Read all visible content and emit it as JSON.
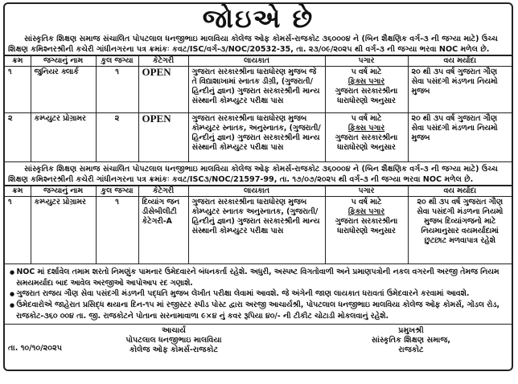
{
  "title": "જોઇએ છે",
  "sections": [
    {
      "intro": "સાંસ્કૃતિક શિક્ષણ સમાજ સંચાલિત પોપટલાલ ધનજીભાઇ માલવિયા કોલેજ ઓફ કોમર્સ-રાજકોટ ૩૬૦૦૦૪ ને (બિન શૈક્ષણિક વર્ગ-૩ ની જગ્યા માટે) ઉચ્ચ શિક્ષણ કમિશ્નરશ્રીની કચેરી ગાંધીનગરના પત્ર ક્રમાંકઃ કવટ/ISC/વર્ગ-૩/NOC/20532-35, તા. ૨૩/૦૯/૨૦૨૫ થી વર્ગ-૩ ની જગ્યા ભરવા NOC મળેલ છે.",
      "rows": [
        {
          "no": "૧",
          "post": "જુનિયર ક્લાર્ક",
          "count": "૧",
          "category": "OPEN",
          "qualification": "ગુજરાત સરકારશ્રીના ધારાધોરણ મુજબ જે તે વિદ્યાશાખામાં સ્નાતક ડીગ્રી, (ગુજરાતી/હિન્દીનું જ્ઞાન) ગુજરાત સરકારશ્રીની માન્ય સંસ્થાની કોમ્પ્યુટર પરીક્ષા પાસ",
          "pay1": "૫ વર્ષ માટે",
          "pay2": "ફિક્સ પગાર",
          "pay3": "ગુજરાત સરકારશ્રીના ધારાધોરણો અનુસાર",
          "age": "૨૦ થી ૩૫ વર્ષ ગુજરાત ગૌણ સેવા પસંદગી મંડળના નિયમો મુજબ"
        },
        {
          "no": "૨",
          "post": "કમ્પ્યુટર પ્રોગ્રામર",
          "count": "૨",
          "category": "OPEN",
          "qualification": "ગુજરાત સરકારશ્રીના ધારાધોરણ મુજબ કોમ્પ્યુટર સ્નાતક, અનુસ્નાતક, (ગુજરાતી/હિન્દીનું જ્ઞાન) ગુજરાત સરકારશ્રીની માન્ય સંસ્થાની કોમ્પ્યુટર પરીક્ષા પાસ",
          "pay1": "૫ વર્ષ માટે",
          "pay2": "ફિક્સ પગાર",
          "pay3": "ગુજરાત સરકારશ્રીના ધારાધોરણો અનુસાર",
          "age": "૨૦ થી ૩૫ વર્ષ ગુજરાત ગૌણ સેવા પસંદગી મંડળના નિયમો મુજબ"
        }
      ]
    },
    {
      "intro": "સાંસ્કૃતિક શિક્ષણ સમાજ સંચાલિત પોપટલાલ ધનજીભાઇ માલવિયા કોલેજ ઓફ કોમર્સ-રાજકોટ ૩૬૦૦૦૪ ને (બિન શૈક્ષણિક વર્ગ-૩ ની જગ્યા માટે) ઉચ્ચ શિક્ષણ કમિશ્નરશ્રીની કચેરી ગાંધીનગરના પત્ર ક્રમાંકઃ કવટ/ISC૩/NOC/21597-99, તા. ૧૭/૦૭/૨૦૨૫ થી વર્ગ-૩ ની જગ્યા ભરવા NOC મળેલ છે.",
      "rows": [
        {
          "no": "૧",
          "post": "કમ્પ્યુટર પ્રોગ્રામર",
          "count": "૧",
          "category": "દિવ્યાંગ જન ડીસેબીલીટી કેટેગરી-A",
          "qualification": "ગુજરાત સરકારશ્રીના ધારાધોરણ મુજબ કોમ્પ્યુટર સ્નાતક અનુસ્નાતક, (ગુજરાતી/હિન્દીનું જ્ઞાન) ગુજરાત સરકારશ્રીની માન્ય સંસ્થાની કોમ્પ્યુટર પરીક્ષા પાસ",
          "pay1": "૫ વર્ષ માટે",
          "pay2": "ફિક્સ પગાર",
          "pay3": "ગુજરાત સરકારશ્રીના ધારાધોરણો અનુસાર",
          "age": "૨૦ થી ૩૫ વર્ષ ગુજરાત ગૌણ સેવા પસંદગી મંડળના નિયમો મુજબ દિવ્યાંગજનો માટે નિયમાનુસાર વયમર્યાદામાં છુટછાટ મળવાપાત્ર રહેશે"
        }
      ]
    }
  ],
  "headers": {
    "no": "ક્રમ",
    "post": "જગ્યાનું નામ",
    "count": "કુલ જગ્યા",
    "category": "કેટેગરી",
    "qualification": "લાયકાત",
    "pay": "પગાર",
    "age": "વય મર્યાદા"
  },
  "notes": [
    "NOC માં દર્શાવેલ તમામ શરતો નિમણુંક પામનાર ઉમેદવારને બંધનકર્તા રહેશે. અધુરી, અસ્પષ્ટ વિગતોવાળી અને પ્રમાણપત્રોની નકલ વગરની અરજી તેમજ નિયમ સમયમર્યાદા બાદ આવેલ અરજીઓ આપોઆપ રદ ગણાશે.",
    "ગુજરાત રાજય ગૌણ સેવા પસંદગી મંડળની પદ્ધતિ મુજબ લેખીત પરીક્ષા લેવામાં આવશે. જે અંગેની જાણ લાયકાત ધરાવતાં ઉમેદવારને કરવામાં આવશે.",
    "ઉમેદવારોએ જાહેરાત પ્રસિદ્ધ થયાના દિન-૧૫ માં રજીસ્ટર સ્પીડ પોસ્ટ દ્વારા અરજી આચાર્યશ્રી, પોપટલાલ ધનજીભાઇ માલવિયા કોલેજ ઓફ કોમર્સ, ગોંડલ રોડ, રાજકોટ-૩૬૦ ૦૦૪ તા. જી. રાજકોટને પોતાના સરનામાવાળા ૯×૪ નું કવર રૂપિયા ૪૦/- ની ટીકીટ ચોટાડી મોકલવાનું રહેશે."
  ],
  "footer": {
    "left": {
      "l1": "આચાર્ય",
      "l2": "પોપટલાલ ધનજીભાઇ માલવિયા",
      "l3": "કોલેજ ઓફ કોમર્સ-રાજકોટ"
    },
    "right": {
      "l1": "પ્રમુખશ્રી",
      "l2": "સાંસ્કૃતિક શિક્ષણ સમાજ,",
      "l3": "રાજકોટ"
    },
    "date": "તા. ૧૦/૧૦/૨૦૨૫"
  }
}
